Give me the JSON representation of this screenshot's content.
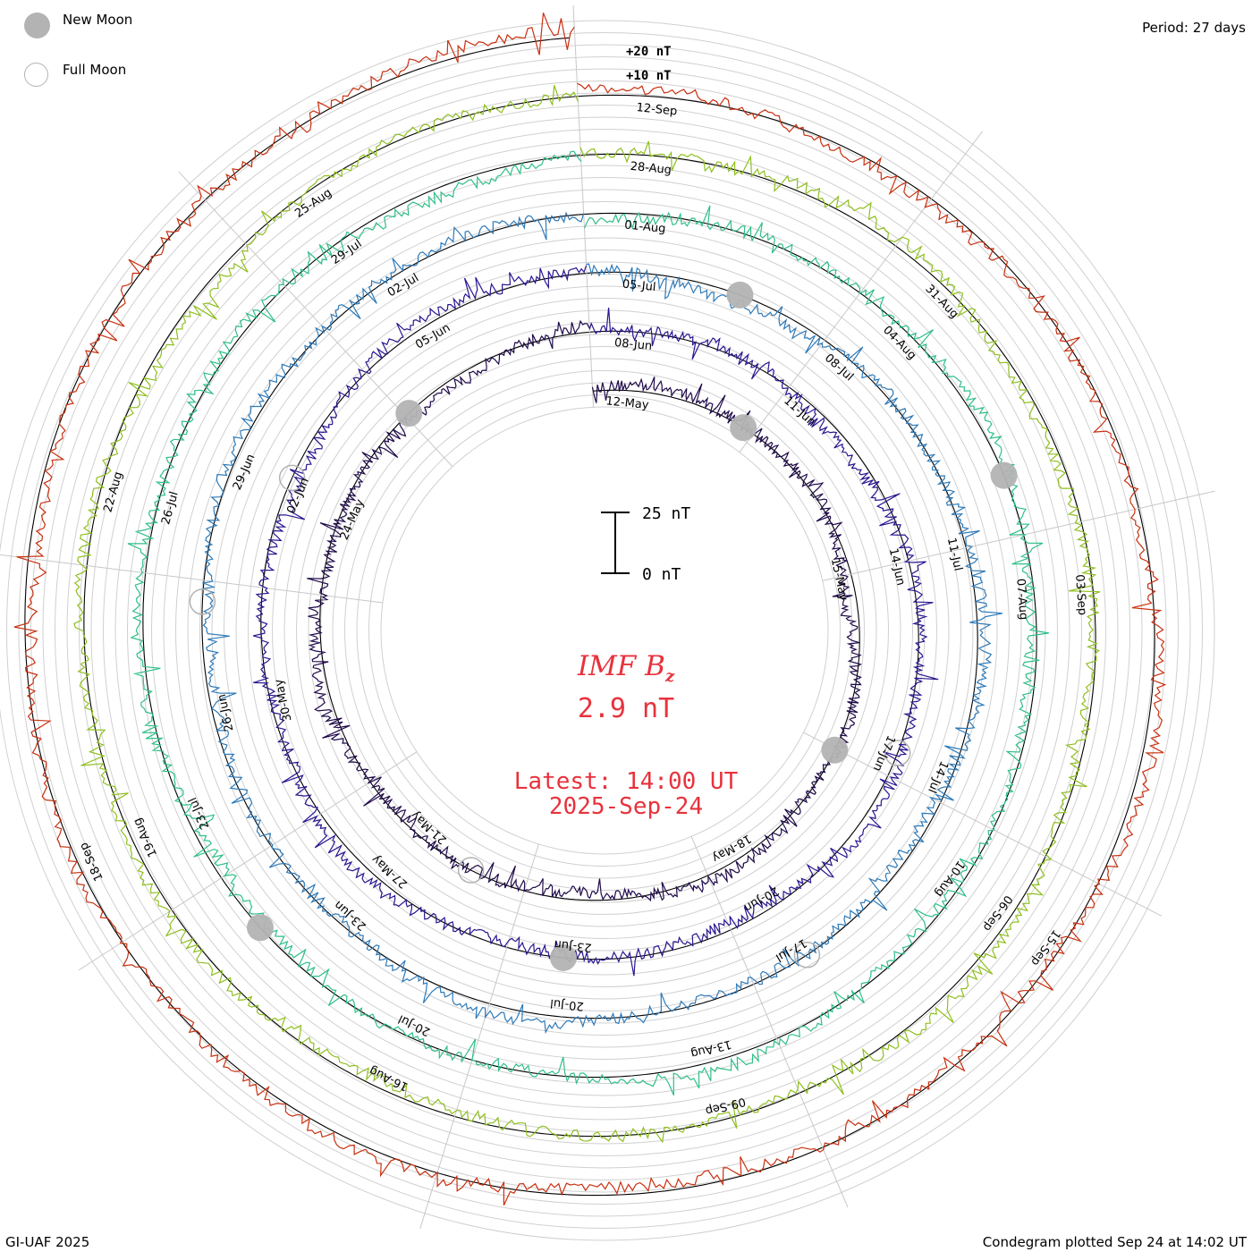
{
  "legend": {
    "new_moon_label": "New Moon",
    "full_moon_label": "Full Moon"
  },
  "period_label": "Period: 27 days",
  "scale": {
    "outer_label_20": "+20 nT",
    "outer_label_10": "+10 nT",
    "bar_top_label": "25 nT",
    "bar_bottom_label": "0 nT"
  },
  "center": {
    "title_main": "IMF B",
    "title_sub": "z",
    "value": "2.9 nT",
    "latest_line": "Latest: 14:00 UT",
    "date_line": "2025-Sep-24"
  },
  "footer": {
    "left": "GI-UAF 2025",
    "right": "Condegram plotted Sep 24 at 14:02 UT"
  },
  "colors": {
    "accent_text": "#e8323c",
    "grid": "#c8c8c8",
    "moon": "#b3b3b3"
  },
  "chart_data": {
    "type": "line",
    "title": "IMF Bz",
    "period_days": 27,
    "units": "nT",
    "rings": [
      {
        "index": 0,
        "start": "12-May",
        "color": "#1f0a4a",
        "date_labels": [
          "12-May",
          "15-May",
          "18-May",
          "21-May",
          "24-May"
        ]
      },
      {
        "index": 1,
        "start": "08-Jun",
        "color": "#2a1590",
        "date_labels": [
          "08-Jun",
          "11-Jun",
          "14-Jun",
          "17-Jun",
          "20-Jun",
          "23-Jun",
          "27-May",
          "30-May",
          "02-Jun",
          "05-Jun"
        ]
      },
      {
        "index": 2,
        "start": "05-Jul",
        "color": "#2e7ab8",
        "date_labels": [
          "05-Jul",
          "08-Jul",
          "11-Jul",
          "14-Jul",
          "17-Jul",
          "20-Jul",
          "23-Jun",
          "26-Jun",
          "29-Jun",
          "02-Jul"
        ]
      },
      {
        "index": 3,
        "start": "01-Aug",
        "color": "#2fbf88",
        "date_labels": [
          "01-Aug",
          "04-Aug",
          "07-Aug",
          "10-Aug",
          "13-Aug",
          "20-Jul",
          "23-Jul",
          "26-Jul",
          "29-Jul"
        ]
      },
      {
        "index": 4,
        "start": "28-Aug",
        "color": "#8fbf20",
        "date_labels": [
          "28-Aug",
          "31-Aug",
          "03-Sep",
          "06-Sep",
          "09-Sep",
          "16-Aug",
          "19-Aug",
          "22-Aug",
          "25-Aug"
        ]
      },
      {
        "index": 5,
        "start": "24-Sep",
        "color": "#c83010",
        "date_labels": [
          "12-Sep",
          "15-Sep",
          "18-Sep"
        ]
      }
    ],
    "center_bz_nt": 2.9,
    "latest": "14:00 UT 2025-Sep-24",
    "scale_bar_nt": [
      0,
      25
    ]
  }
}
